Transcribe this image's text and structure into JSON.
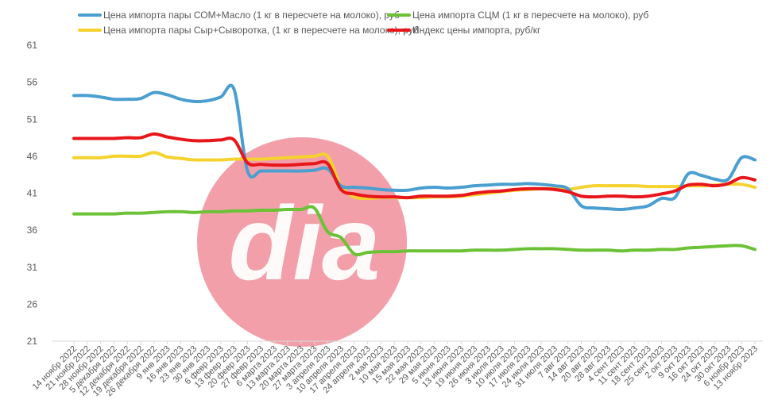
{
  "chart_data": {
    "type": "line",
    "ylim": [
      21,
      61
    ],
    "yticks": [
      21,
      26,
      31,
      36,
      41,
      46,
      51,
      56,
      61
    ],
    "grid": false,
    "legend_position": "top",
    "watermark_text": "dia",
    "categories": [
      "14 ноябр 2022",
      "21 ноябр 2022",
      "28 ноябр 2022",
      "5 декабря 2022",
      "12 декабря 2022",
      "19 декабря 2022",
      "26 декабря 2022",
      "9 янв 2023",
      "16 янв 2023",
      "23 янв 2023",
      "30 янв 2023",
      "6 февр 2023",
      "13 февр 2023",
      "20 февр 2023",
      "27 февр 2023",
      "6 марта 2023",
      "13 марта 2023",
      "20 марта 2023",
      "27 марта 2023",
      "3 апреля 2023",
      "10 апреля 2023",
      "17 апреля 2023",
      "24 апреля 2023",
      "2 мая 2023",
      "10 мая 2023",
      "15 мая 2023",
      "22 мая 2023",
      "29 мая 2023",
      "5 июня 2023",
      "13 июня 2023",
      "19 июня 2023",
      "26 июня 2023",
      "3 июля 2023",
      "10 июля 2023",
      "17 июля 2023",
      "24 июля 2023",
      "31 июля 2023",
      "7 авг 2023",
      "14 авг 2023",
      "20 авг 2023",
      "28 авг 2023",
      "4 сент 2023",
      "11 сент 2023",
      "18 сент 2023",
      "25 сент 2023",
      "2 окт 2023",
      "9 окт 2023",
      "16 окт 2023",
      "24 окт 2023",
      "30 окт 2023",
      "6 ноябр 2023",
      "13 ноябр 2023"
    ],
    "series": [
      {
        "name": "Цена импорта пары СОМ+Масло (1 кг в пересчете на молоко), руб",
        "color": "#4a9fd0",
        "values": [
          54.2,
          54.2,
          54.0,
          53.7,
          53.7,
          53.8,
          54.6,
          54.3,
          53.7,
          53.4,
          53.5,
          54.0,
          55.0,
          44.0,
          44.0,
          44.0,
          44.0,
          44.0,
          44.1,
          44.3,
          42.0,
          41.8,
          41.7,
          41.5,
          41.4,
          41.4,
          41.7,
          41.8,
          41.7,
          41.8,
          42.0,
          42.1,
          42.2,
          42.2,
          42.3,
          42.2,
          42.0,
          41.6,
          39.3,
          39.0,
          38.9,
          38.8,
          39.0,
          39.3,
          40.3,
          40.4,
          43.6,
          43.4,
          42.9,
          42.9,
          45.8,
          45.5
        ]
      },
      {
        "name": "Цена импорта СЦМ (1 кг в пересчете на молоко), руб",
        "color": "#6cc236",
        "values": [
          38.2,
          38.2,
          38.2,
          38.2,
          38.3,
          38.3,
          38.4,
          38.5,
          38.5,
          38.4,
          38.5,
          38.5,
          38.6,
          38.6,
          38.7,
          38.7,
          38.8,
          38.8,
          39.0,
          35.8,
          35.0,
          32.8,
          33.0,
          33.1,
          33.1,
          33.2,
          33.2,
          33.2,
          33.2,
          33.2,
          33.3,
          33.3,
          33.3,
          33.4,
          33.5,
          33.5,
          33.5,
          33.4,
          33.3,
          33.3,
          33.3,
          33.2,
          33.3,
          33.3,
          33.4,
          33.4,
          33.6,
          33.7,
          33.8,
          33.9,
          33.9,
          33.4
        ]
      },
      {
        "name": "Цена импорта пары Сыр+Сыворотка, (1 кг в пересчете на молоко), руб",
        "color": "#f5d22e",
        "values": [
          45.8,
          45.8,
          45.8,
          46.0,
          46.0,
          46.0,
          46.5,
          45.9,
          45.7,
          45.5,
          45.5,
          45.5,
          45.6,
          45.6,
          45.6,
          45.7,
          45.8,
          45.9,
          46.0,
          46.0,
          42.0,
          40.5,
          40.3,
          40.4,
          40.4,
          40.4,
          40.4,
          40.5,
          40.5,
          40.6,
          40.8,
          41.0,
          41.2,
          41.4,
          41.5,
          41.6,
          41.6,
          41.5,
          41.8,
          42.0,
          42.0,
          42.0,
          42.0,
          41.9,
          41.9,
          41.9,
          42.0,
          42.0,
          42.1,
          42.2,
          42.2,
          41.8
        ]
      },
      {
        "name": "Индекс цены импорта,  руб/кг",
        "color": "#e8161a",
        "values": [
          48.4,
          48.4,
          48.4,
          48.4,
          48.5,
          48.5,
          49.0,
          48.6,
          48.3,
          48.1,
          48.1,
          48.2,
          48.2,
          45.1,
          44.9,
          44.8,
          44.8,
          44.9,
          45.0,
          45.0,
          41.5,
          40.9,
          40.6,
          40.5,
          40.5,
          40.4,
          40.6,
          40.6,
          40.6,
          40.7,
          41.0,
          41.2,
          41.3,
          41.5,
          41.6,
          41.6,
          41.5,
          41.2,
          40.6,
          40.5,
          40.6,
          40.6,
          40.5,
          40.6,
          40.9,
          41.3,
          42.1,
          42.2,
          42.0,
          42.3,
          43.1,
          42.8
        ]
      }
    ]
  }
}
